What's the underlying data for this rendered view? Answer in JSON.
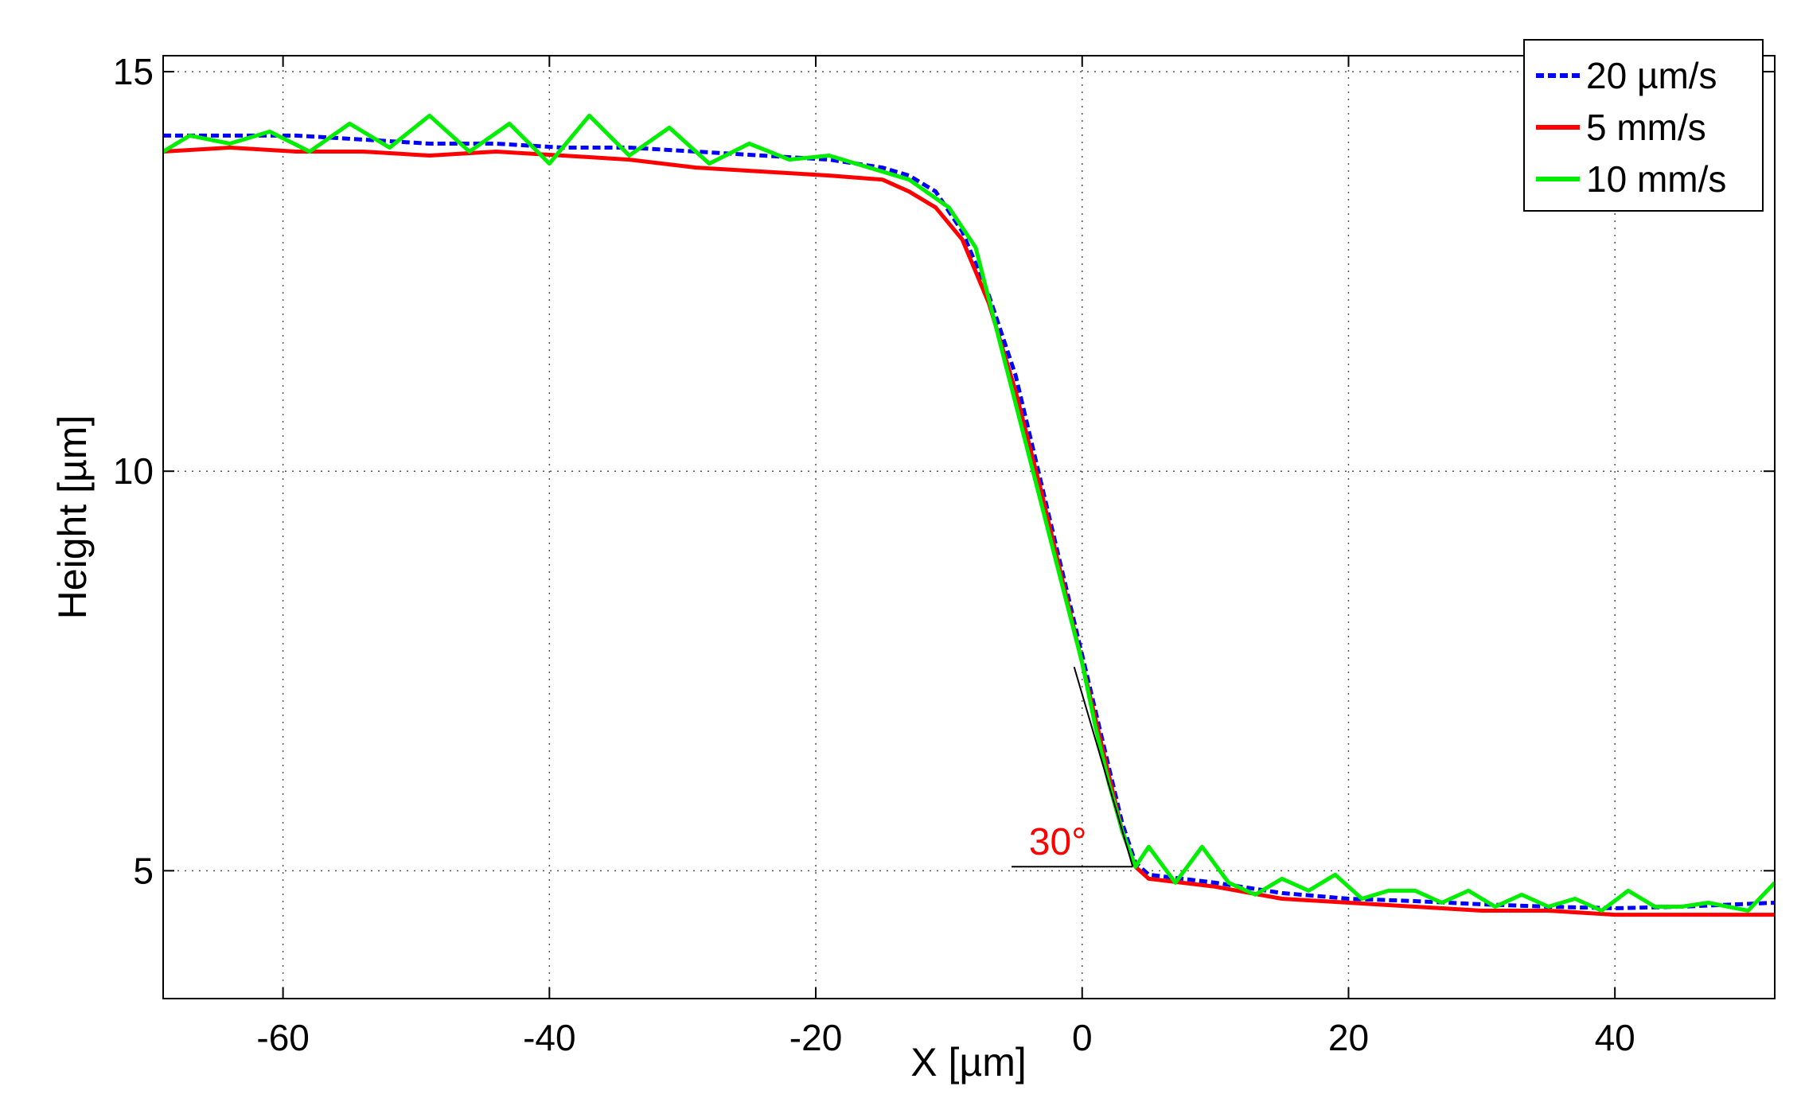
{
  "chart_data": {
    "type": "line",
    "title": "",
    "xlabel": "X [µm]",
    "ylabel": "Height [µm]",
    "xlim": [
      -69,
      52
    ],
    "ylim": [
      3.4,
      15.2
    ],
    "xticks": [
      -60,
      -40,
      -20,
      0,
      20,
      40
    ],
    "yticks": [
      5,
      10,
      15
    ],
    "grid": true,
    "legend_position": "top-right",
    "series": [
      {
        "name": "20 µm/s",
        "color": "#0000ff",
        "style": "dashed",
        "x": [
          -69,
          -64,
          -59,
          -54,
          -49,
          -44,
          -39,
          -34,
          -29,
          -24,
          -19,
          -15,
          -13,
          -11,
          -9,
          -7,
          -5,
          -3,
          -1,
          1,
          2,
          3,
          4,
          5,
          10,
          15,
          20,
          25,
          30,
          35,
          40,
          45,
          52
        ],
        "y": [
          14.2,
          14.2,
          14.2,
          14.15,
          14.1,
          14.1,
          14.05,
          14.05,
          14.0,
          13.95,
          13.9,
          13.8,
          13.7,
          13.5,
          13.0,
          12.2,
          11.2,
          9.8,
          8.4,
          7.0,
          6.3,
          5.6,
          5.1,
          4.95,
          4.85,
          4.72,
          4.65,
          4.62,
          4.58,
          4.55,
          4.53,
          4.55,
          4.6
        ]
      },
      {
        "name": "5 mm/s",
        "color": "#ff0000",
        "style": "solid",
        "x": [
          -69,
          -64,
          -59,
          -54,
          -49,
          -44,
          -39,
          -34,
          -29,
          -24,
          -19,
          -15,
          -13,
          -11,
          -9,
          -7,
          -5,
          -3,
          -1,
          1,
          2,
          3,
          4,
          5,
          10,
          15,
          20,
          25,
          30,
          35,
          40,
          45,
          52
        ],
        "y": [
          14.0,
          14.05,
          14.0,
          14.0,
          13.95,
          14.0,
          13.95,
          13.9,
          13.8,
          13.75,
          13.7,
          13.65,
          13.5,
          13.3,
          12.9,
          12.1,
          11.0,
          9.7,
          8.3,
          6.9,
          6.2,
          5.5,
          5.05,
          4.9,
          4.8,
          4.65,
          4.6,
          4.55,
          4.5,
          4.5,
          4.45,
          4.45,
          4.45
        ]
      },
      {
        "name": "10 mm/s",
        "color": "#00ee00",
        "style": "solid",
        "x": [
          -69,
          -67,
          -64,
          -61,
          -58,
          -55,
          -52,
          -49,
          -46,
          -43,
          -40,
          -37,
          -34,
          -31,
          -28,
          -25,
          -22,
          -19,
          -16,
          -13,
          -10,
          -8,
          -6,
          -4,
          -2,
          0,
          1,
          2,
          3,
          4,
          5,
          7,
          9,
          11,
          13,
          15,
          17,
          19,
          21,
          23,
          25,
          27,
          29,
          31,
          33,
          35,
          37,
          39,
          41,
          43,
          45,
          47,
          50,
          52
        ],
        "y": [
          14.0,
          14.2,
          14.1,
          14.25,
          14.0,
          14.35,
          14.05,
          14.45,
          14.0,
          14.35,
          13.85,
          14.45,
          13.95,
          14.3,
          13.85,
          14.1,
          13.9,
          13.95,
          13.8,
          13.65,
          13.3,
          12.8,
          11.5,
          10.2,
          8.9,
          7.6,
          6.8,
          6.1,
          5.5,
          5.05,
          5.3,
          4.85,
          5.3,
          4.85,
          4.7,
          4.9,
          4.75,
          4.95,
          4.65,
          4.75,
          4.75,
          4.6,
          4.75,
          4.55,
          4.7,
          4.55,
          4.65,
          4.5,
          4.75,
          4.55,
          4.55,
          4.6,
          4.5,
          4.85
        ]
      }
    ],
    "annotations": [
      {
        "text": "30°",
        "color": "#ff0000",
        "x": -4,
        "y": 5.2
      }
    ]
  }
}
